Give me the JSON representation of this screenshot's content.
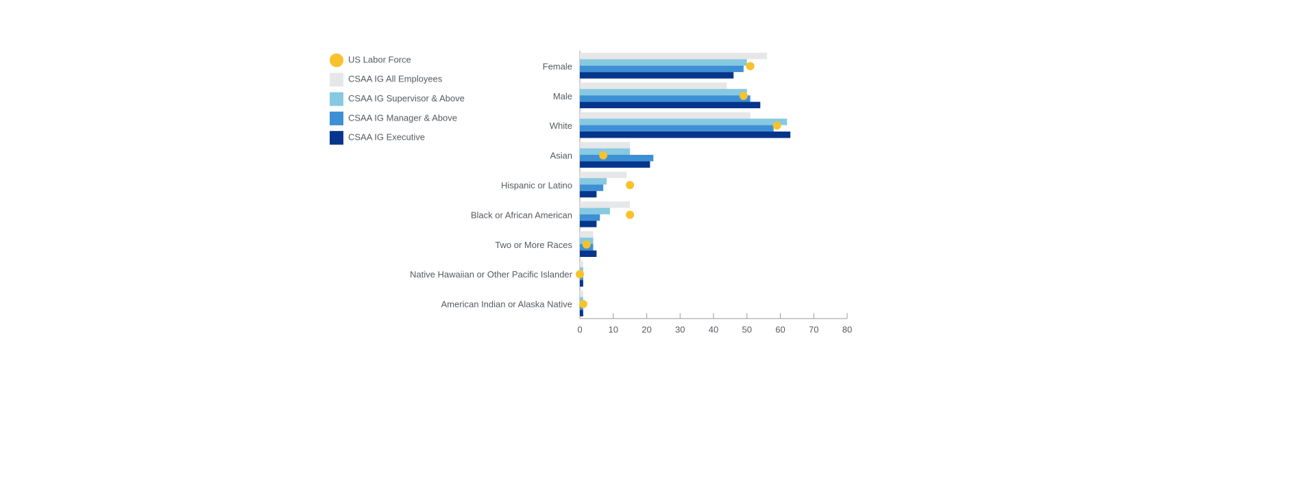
{
  "chart_data": {
    "type": "bar",
    "orientation": "horizontal",
    "categories": [
      "Female",
      "Male",
      "White",
      "Asian",
      "Hispanic or Latino",
      "Black or African American",
      "Two or More Races",
      "Native Hawaiian or Other Pacific Islander",
      "American Indian or Alaska Native"
    ],
    "series": [
      {
        "name": "US Labor Force",
        "color": "#f7c22c",
        "style": "dot",
        "values": [
          51,
          49,
          59,
          7,
          15,
          15,
          2,
          0,
          1
        ]
      },
      {
        "name": "CSAA IG All Employees",
        "color": "#e6e7e8",
        "style": "bar",
        "values": [
          56,
          44,
          51,
          15,
          14,
          15,
          4,
          1,
          1
        ]
      },
      {
        "name": "CSAA IG Supervisor & Above",
        "color": "#86c9e1",
        "style": "bar",
        "values": [
          50,
          50,
          62,
          15,
          8,
          9,
          4,
          1,
          1
        ]
      },
      {
        "name": "CSAA IG Manager & Above",
        "color": "#3e90d5",
        "style": "bar",
        "values": [
          49,
          51,
          58,
          22,
          7,
          6,
          4,
          1,
          1
        ]
      },
      {
        "name": "CSAA IG Executive",
        "color": "#06358c",
        "style": "bar",
        "values": [
          46,
          54,
          63,
          21,
          5,
          5,
          5,
          1,
          1
        ]
      }
    ],
    "xlim": [
      0,
      80
    ],
    "xticks": [
      0,
      10,
      20,
      30,
      40,
      50,
      60,
      70,
      80
    ]
  }
}
